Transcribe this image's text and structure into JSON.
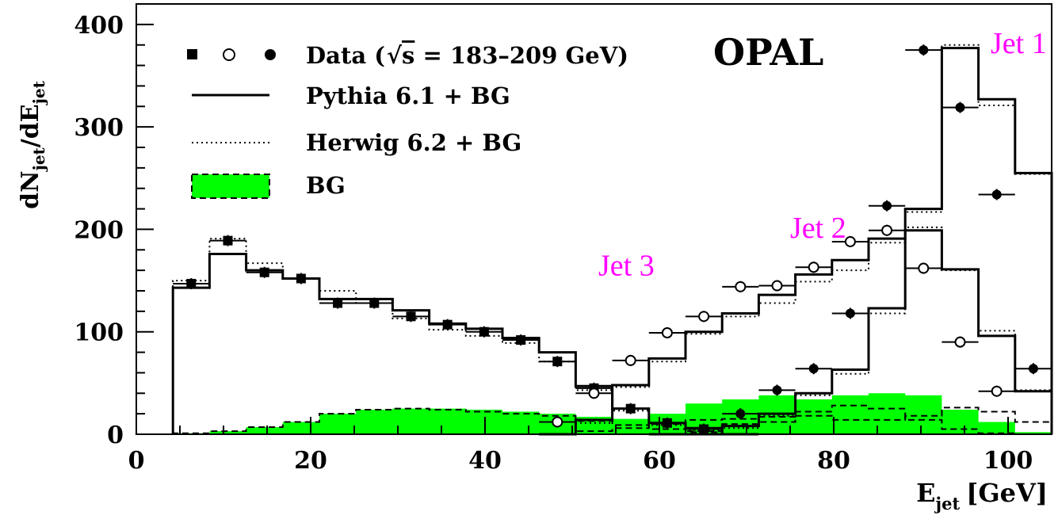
{
  "chart_data": {
    "type": "histogram",
    "experiment_label": "OPAL",
    "xlabel": "E",
    "xlabel_sub": "jet",
    "xlabel_unit": "[GeV]",
    "ylabel_parts": [
      "dN",
      "jet",
      "/dE",
      "jet"
    ],
    "xlim": [
      0,
      105
    ],
    "ylim": [
      0,
      420
    ],
    "xticks": [
      0,
      20,
      40,
      60,
      80,
      100
    ],
    "yticks": [
      0,
      100,
      200,
      300,
      400
    ],
    "bin_edges": [
      4.2,
      8.4,
      12.6,
      16.8,
      21.0,
      25.2,
      29.4,
      33.6,
      37.8,
      42.0,
      46.2,
      50.4,
      54.6,
      58.8,
      63.0,
      67.2,
      71.4,
      75.6,
      79.8,
      84.0,
      88.2,
      92.4,
      96.6,
      100.8,
      105.0
    ],
    "annotation_color": "#ff00ff",
    "bg_color": "#00ff00",
    "legend": [
      {
        "key": "data",
        "markers": "■ ○ ●",
        "label": "Data (",
        "sqrt_s": "s",
        "label_rest": " = 183–209 GeV)"
      },
      {
        "key": "pythia",
        "label": "Pythia 6.1 + BG"
      },
      {
        "key": "herwig",
        "label": "Herwig 6.2 + BG"
      },
      {
        "key": "bg",
        "label": "BG"
      }
    ],
    "series": [
      {
        "jet": "Jet 3",
        "annotation": "Jet 3",
        "annotation_at": [
          53,
          155
        ],
        "marker": "square",
        "data_x": [
          6.3,
          10.5,
          14.7,
          18.9,
          23.1,
          27.3,
          31.5,
          35.7,
          39.9,
          44.1,
          48.3,
          52.5,
          56.7,
          60.9,
          65.1
        ],
        "data": [
          147,
          189,
          158,
          152,
          128,
          128,
          115,
          107,
          100,
          92,
          71,
          45,
          25,
          11,
          5
        ],
        "pythia": [
          143,
          176,
          160,
          152,
          132,
          132,
          121,
          108,
          103,
          94,
          80,
          47,
          25,
          11,
          6,
          0
        ],
        "herwig": [
          150,
          191,
          167,
          152,
          140,
          128,
          113,
          102,
          96,
          89,
          71,
          43,
          23,
          9,
          4,
          0
        ],
        "bg": [
          1,
          3,
          7,
          12,
          20,
          24,
          25,
          24,
          22,
          20,
          18,
          13,
          9,
          5,
          2,
          0
        ]
      },
      {
        "jet": "Jet 2",
        "annotation": "Jet 2",
        "annotation_at": [
          75,
          192
        ],
        "marker": "open",
        "data_x": [
          48.3,
          52.5,
          56.7,
          60.9,
          65.1,
          69.3,
          73.5,
          77.7,
          81.9,
          86.1,
          90.3,
          94.5,
          98.7
        ],
        "data": [
          12,
          40,
          72,
          99,
          115,
          144,
          145,
          163,
          188,
          199,
          162,
          90,
          42
        ],
        "pythia_start": 10,
        "pythia": [
          0,
          14,
          48,
          74,
          100,
          118,
          136,
          156,
          170,
          191,
          199,
          161,
          96,
          42,
          0
        ],
        "herwig": [
          0,
          11,
          46,
          71,
          98,
          115,
          128,
          149,
          160,
          187,
          202,
          160,
          101,
          43,
          0
        ],
        "bg": [
          0,
          3,
          6,
          10,
          14,
          15,
          17,
          22,
          28,
          25,
          14,
          5,
          1,
          0,
          0
        ]
      },
      {
        "jet": "Jet 1",
        "annotation": "Jet 1",
        "annotation_at": [
          98,
          372
        ],
        "marker": "filled",
        "data_x": [
          69.3,
          73.5,
          77.7,
          81.9,
          86.1,
          90.3,
          94.5,
          98.7,
          102.9
        ],
        "data": [
          20,
          43,
          64,
          118,
          223,
          375,
          319,
          234,
          64
        ],
        "pythia_start": 13,
        "pythia": [
          0,
          0,
          8,
          20,
          40,
          63,
          123,
          220,
          377,
          327,
          255,
          75
        ],
        "herwig": [
          0,
          0,
          6,
          18,
          38,
          59,
          118,
          217,
          380,
          321,
          254,
          73
        ],
        "bg": [
          0,
          3,
          10,
          12,
          18,
          14,
          14,
          18,
          26,
          22,
          12,
          2
        ]
      }
    ],
    "bg_total": [
      1,
      3,
      7,
      12,
      20,
      24,
      25,
      25,
      24,
      22,
      20,
      17,
      15,
      20,
      30,
      34,
      38,
      34,
      38,
      40,
      38,
      24,
      12,
      2
    ]
  }
}
